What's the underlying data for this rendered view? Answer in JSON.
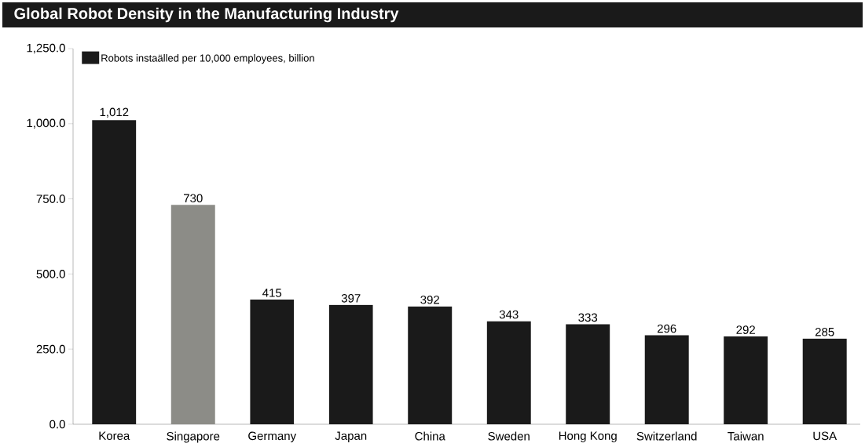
{
  "chart_data": {
    "type": "bar",
    "title": "Global Robot Density in the Manufacturing Industry",
    "categories": [
      "Korea",
      "Singapore",
      "Germany",
      "Japan",
      "China",
      "Sweden",
      "Hong Kong",
      "Switzerland",
      "Taiwan",
      "USA"
    ],
    "series": [
      {
        "name": "Robots instaälled per 10,000 employees, billion",
        "color": "#1a1a1a",
        "colors": [
          "#1a1a1a",
          "#8c8c87",
          "#1a1a1a",
          "#1a1a1a",
          "#1a1a1a",
          "#1a1a1a",
          "#1a1a1a",
          "#1a1a1a",
          "#1a1a1a",
          "#1a1a1a"
        ],
        "values": [
          1012,
          730,
          415,
          397,
          392,
          343,
          333,
          296,
          292,
          285
        ],
        "value_labels": [
          "1,012",
          "730",
          "415",
          "397",
          "392",
          "343",
          "333",
          "296",
          "292",
          "285"
        ]
      }
    ],
    "ylim": [
      0,
      1250
    ],
    "yticks": [
      {
        "value": 0,
        "label": "0.0"
      },
      {
        "value": 250,
        "label": "250.0"
      },
      {
        "value": 500,
        "label": "500.0"
      },
      {
        "value": 750,
        "label": "750.0"
      },
      {
        "value": 1000,
        "label": "1,000.0"
      },
      {
        "value": 1250,
        "label": "1,250.0"
      }
    ],
    "legend": "top left"
  }
}
